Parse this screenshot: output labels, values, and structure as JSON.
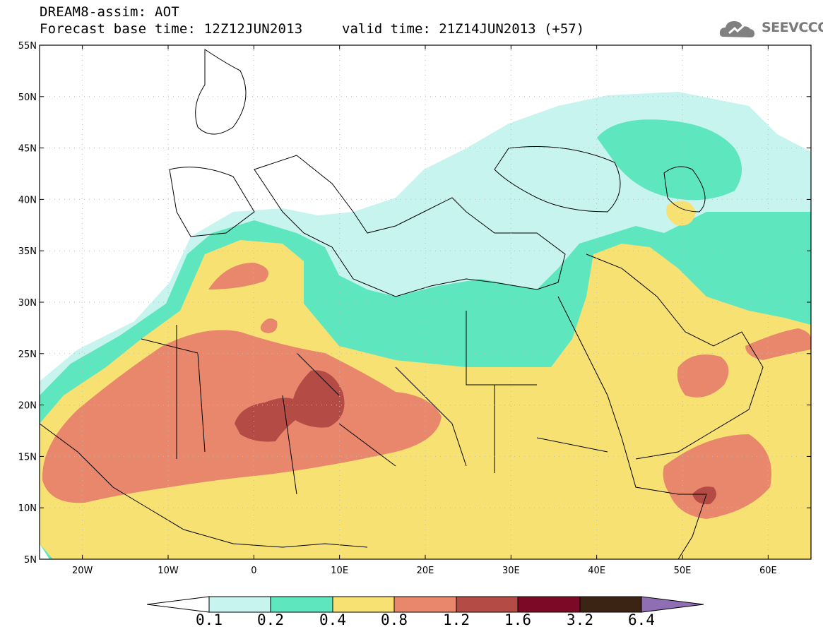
{
  "header": {
    "title": "DREAM8-assim: AOT",
    "base_time": "Forecast base time: 12Z12JUN2013",
    "valid_time": "valid time: 21Z14JUN2013 (+57)",
    "logo_text": "SEEVCCC"
  },
  "map": {
    "lat_labels": [
      "55N",
      "50N",
      "45N",
      "40N",
      "35N",
      "30N",
      "25N",
      "20N",
      "15N",
      "10N",
      "5N"
    ],
    "lon_labels": [
      "20W",
      "10W",
      "0",
      "10E",
      "20E",
      "30E",
      "40E",
      "50E",
      "60E"
    ],
    "lat_range": [
      5,
      55
    ],
    "lon_range": [
      -25,
      65
    ]
  },
  "legend": {
    "labels": [
      "0.1",
      "0.2",
      "0.4",
      "0.8",
      "1.2",
      "1.6",
      "3.2",
      "6.4"
    ],
    "colors": {
      "under": "#ffffff",
      "c1": "#c8f4ef",
      "c2": "#5ee6bf",
      "c3": "#f7e172",
      "c4": "#e8876c",
      "c5": "#b44c45",
      "c6": "#7c0a26",
      "c7": "#3b2414",
      "over": "#8f6eb4"
    }
  }
}
